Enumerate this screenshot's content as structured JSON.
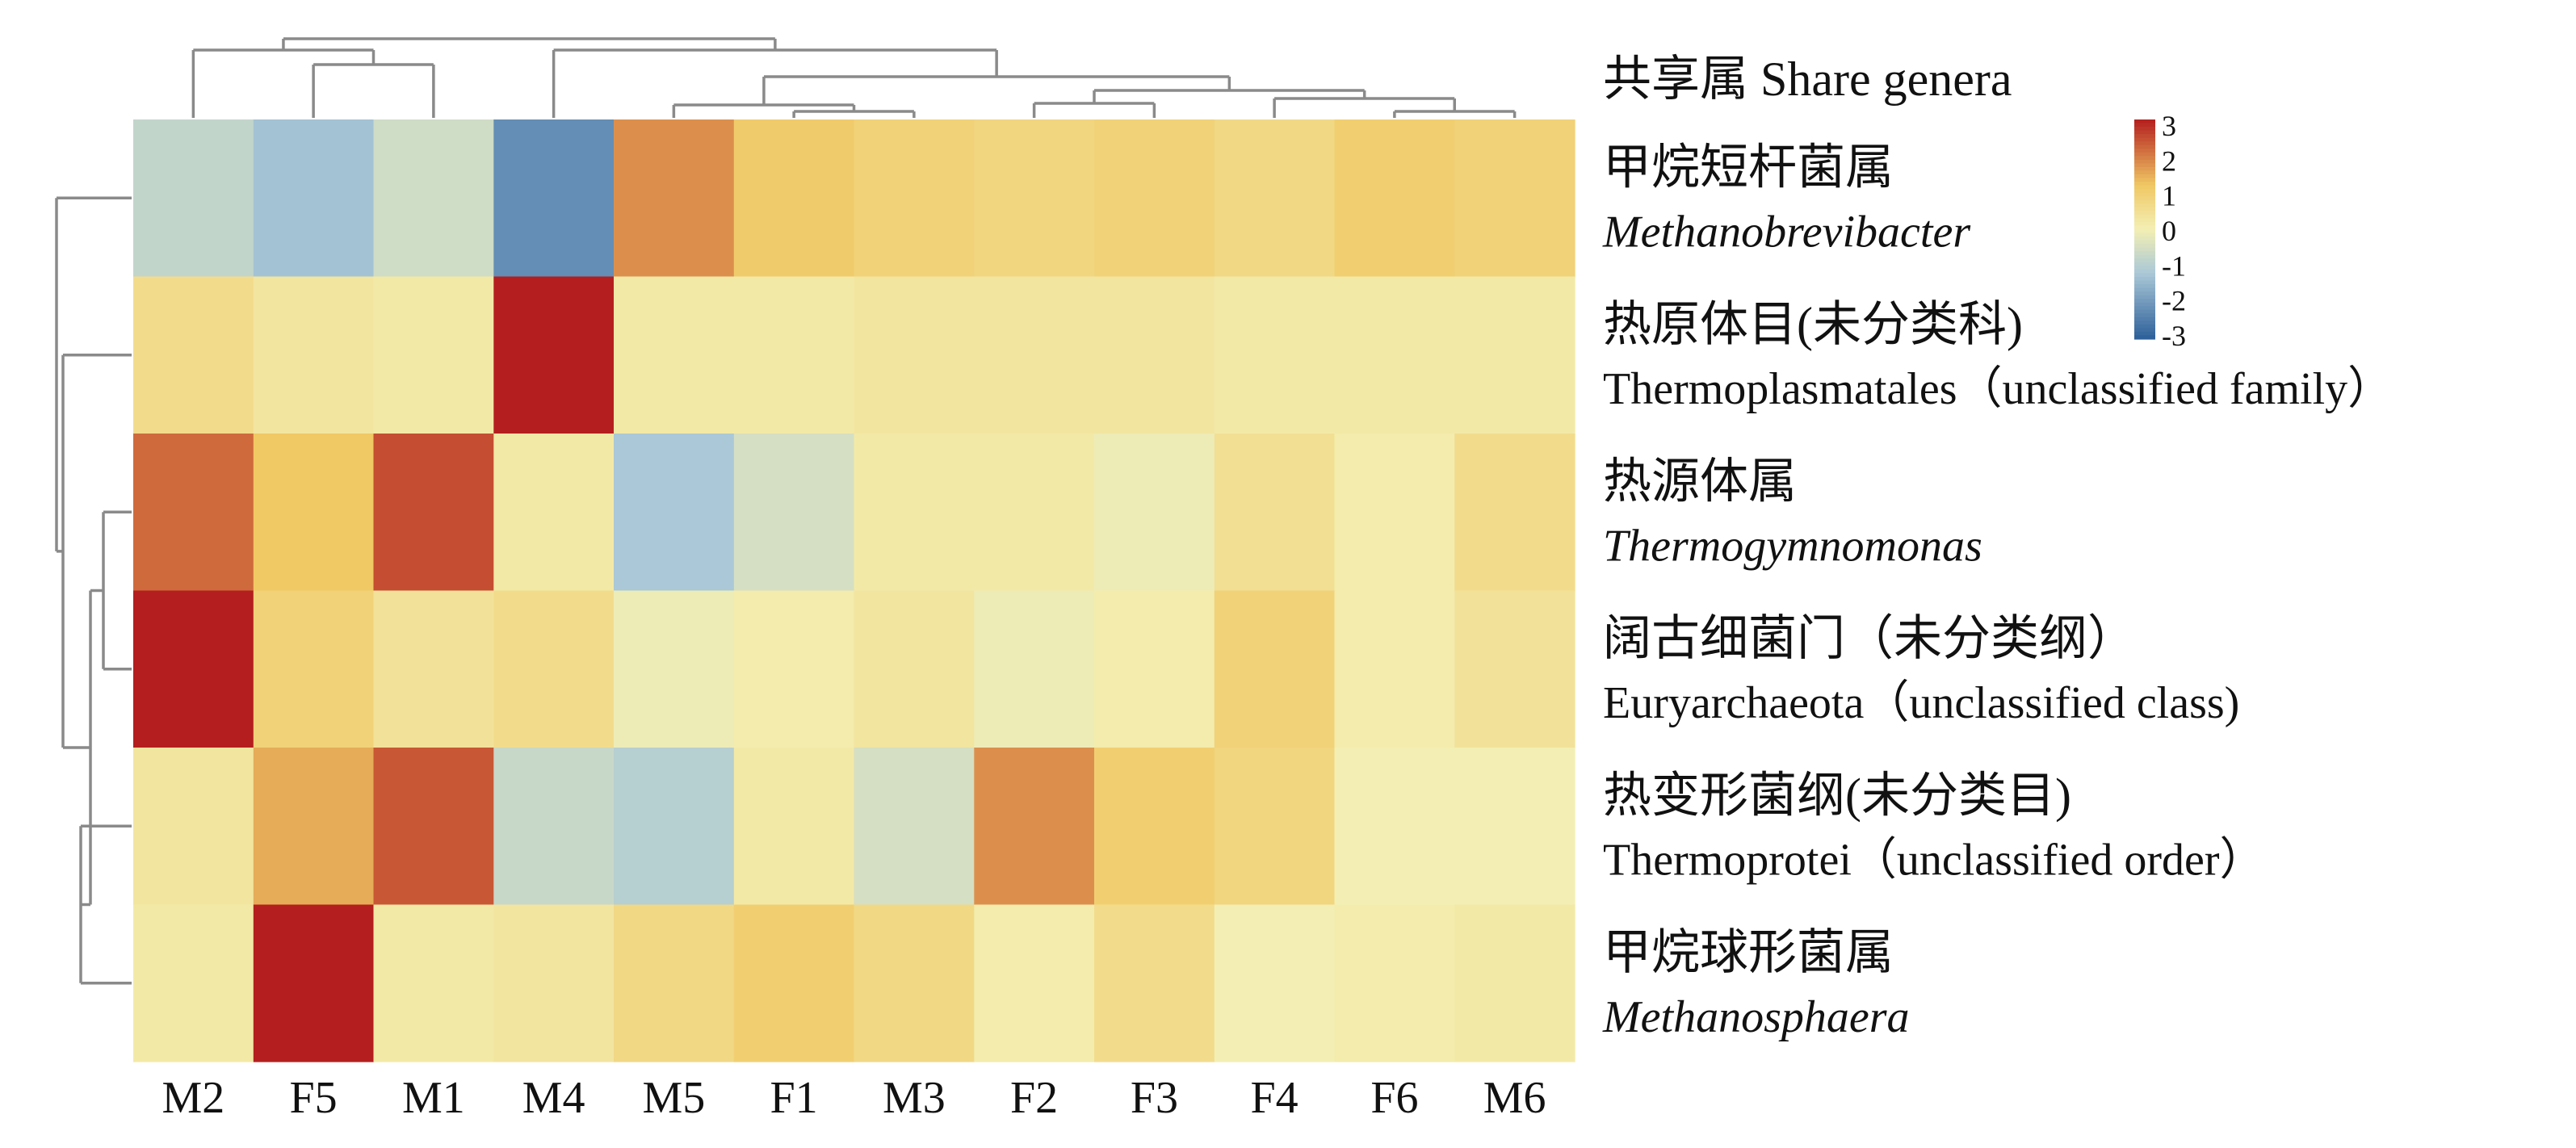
{
  "chart_data": {
    "type": "heatmap",
    "title": "",
    "column_header": "共享属  Share genera",
    "columns": [
      "M2",
      "F5",
      "M1",
      "M4",
      "M5",
      "F1",
      "M3",
      "F2",
      "F3",
      "F4",
      "F6",
      "M6"
    ],
    "rows": [
      {
        "name_zh": "甲烷短杆菌属",
        "name_en": "Methanobrevibacter",
        "italic": true
      },
      {
        "name_zh": "热原体目(未分类科)",
        "name_en": "Thermoplasmatales（unclassified family）",
        "italic": false
      },
      {
        "name_zh": "热源体属",
        "name_en": "Thermogymnomonas",
        "italic": true
      },
      {
        "name_zh": "阔古细菌门（未分类纲）",
        "name_en": "Euryarchaeota（unclassified class)",
        "italic": false
      },
      {
        "name_zh": "热变形菌纲(未分类目)",
        "name_en": "Thermoprotei（unclassified order）",
        "italic": false
      },
      {
        "name_zh": "甲烷球形菌属",
        "name_en": "Methanosphaera",
        "italic": true
      }
    ],
    "values": [
      [
        -0.8,
        -1.3,
        -0.6,
        -2.2,
        1.8,
        1.1,
        0.9,
        0.8,
        0.9,
        0.7,
        1.0,
        0.9
      ],
      [
        0.6,
        0.3,
        0.2,
        3.0,
        0.2,
        0.2,
        0.3,
        0.3,
        0.3,
        0.2,
        0.2,
        0.2
      ],
      [
        2.2,
        1.2,
        2.5,
        0.2,
        -1.2,
        -0.5,
        0.2,
        0.2,
        -0.1,
        0.5,
        0.1,
        0.6
      ],
      [
        3.0,
        0.9,
        0.4,
        0.6,
        -0.1,
        0.1,
        0.3,
        -0.1,
        0.1,
        0.9,
        0.1,
        0.4
      ],
      [
        0.3,
        1.5,
        2.4,
        -0.7,
        -1.0,
        0.2,
        -0.5,
        1.8,
        1.0,
        0.8,
        0.0,
        0.0
      ],
      [
        0.2,
        3.0,
        0.2,
        0.3,
        0.7,
        1.0,
        0.7,
        0.1,
        0.6,
        0.0,
        0.1,
        0.2
      ]
    ],
    "colorbar": {
      "range": [
        -3,
        3
      ],
      "ticks": [
        "3",
        "2",
        "1",
        "0",
        "-1",
        "-2",
        "-3"
      ],
      "low_color": "#2c5f99",
      "mid_color": "#f3efb4",
      "high_color": "#b41e1e"
    },
    "dendrogram": {
      "columns": "hierarchical",
      "rows": "hierarchical"
    }
  }
}
